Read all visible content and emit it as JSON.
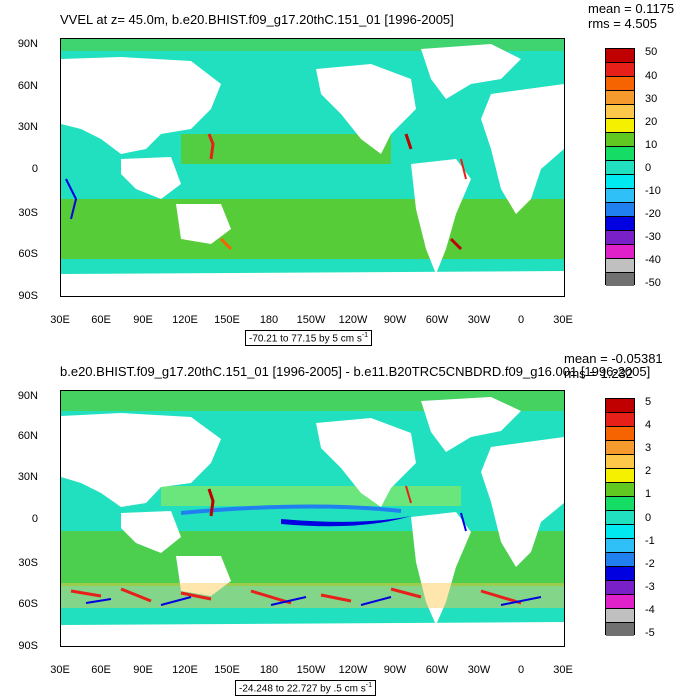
{
  "panel1": {
    "title": "VVEL at z=  45.0m, b.e20.BHIST.f09_g17.20thC.151_01 [1996-2005]",
    "mean": "mean = 0.1175",
    "rms": "rms = 4.505",
    "range": "-70.21 to 77.15 by 5 cm s",
    "range_sup": "-1",
    "colorbar_labels": [
      "50",
      "40",
      "30",
      "20",
      "10",
      "0",
      "-10",
      "-20",
      "-30",
      "-40",
      "-50"
    ]
  },
  "panel2": {
    "title": "b.e20.BHIST.f09_g17.20thC.151_01 [1996-2005] - b.e11.B20TRC5CNBDRD.f09_g16.001 [1996-2005]",
    "mean": "mean = -0.05381",
    "rms": "rms = 1.232",
    "range": "-24.248 to 22.727 by .5 cm s",
    "range_sup": "-1",
    "colorbar_labels": [
      "5",
      "4",
      "3",
      "2",
      "1",
      "0",
      "-1",
      "-2",
      "-3",
      "-4",
      "-5"
    ]
  },
  "lat_labels": [
    "90N",
    "60N",
    "30N",
    "0",
    "30S",
    "60S",
    "90S"
  ],
  "lon_labels": [
    "30E",
    "60E",
    "90E",
    "120E",
    "150E",
    "180",
    "150W",
    "120W",
    "90W",
    "60W",
    "30W",
    "0",
    "30E"
  ],
  "colorbar_colors": [
    "#c00000",
    "#e8201a",
    "#f56400",
    "#f59a2c",
    "#fdc84a",
    "#f5f000",
    "#60c820",
    "#14dc64",
    "#20e0c0",
    "#00e8f0",
    "#30c0f8",
    "#2080f0",
    "#0000e0",
    "#7a20c8",
    "#e020c8",
    "#c0c0c0",
    "#707070"
  ]
}
